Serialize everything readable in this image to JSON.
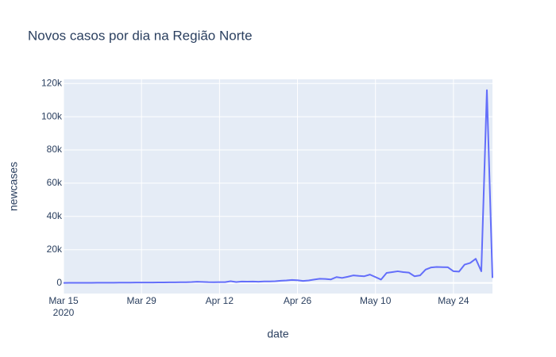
{
  "chart_data": {
    "type": "line",
    "title": "Novos casos por dia na Região Norte",
    "x_label": "date",
    "y_label": "newcases",
    "x": [
      "2020-03-15",
      "2020-03-16",
      "2020-03-17",
      "2020-03-18",
      "2020-03-19",
      "2020-03-20",
      "2020-03-21",
      "2020-03-22",
      "2020-03-23",
      "2020-03-24",
      "2020-03-25",
      "2020-03-26",
      "2020-03-27",
      "2020-03-28",
      "2020-03-29",
      "2020-03-30",
      "2020-03-31",
      "2020-04-01",
      "2020-04-02",
      "2020-04-03",
      "2020-04-04",
      "2020-04-05",
      "2020-04-06",
      "2020-04-07",
      "2020-04-08",
      "2020-04-09",
      "2020-04-10",
      "2020-04-11",
      "2020-04-12",
      "2020-04-13",
      "2020-04-14",
      "2020-04-15",
      "2020-04-16",
      "2020-04-17",
      "2020-04-18",
      "2020-04-19",
      "2020-04-20",
      "2020-04-21",
      "2020-04-22",
      "2020-04-23",
      "2020-04-24",
      "2020-04-25",
      "2020-04-26",
      "2020-04-27",
      "2020-04-28",
      "2020-04-29",
      "2020-04-30",
      "2020-05-01",
      "2020-05-02",
      "2020-05-03",
      "2020-05-04",
      "2020-05-05",
      "2020-05-06",
      "2020-05-07",
      "2020-05-08",
      "2020-05-09",
      "2020-05-10",
      "2020-05-11",
      "2020-05-12",
      "2020-05-13",
      "2020-05-14",
      "2020-05-15",
      "2020-05-16",
      "2020-05-17",
      "2020-05-18",
      "2020-05-19",
      "2020-05-20",
      "2020-05-21",
      "2020-05-22",
      "2020-05-23",
      "2020-05-24",
      "2020-05-25",
      "2020-05-26",
      "2020-05-27",
      "2020-05-28",
      "2020-05-29",
      "2020-05-30",
      "2020-05-31"
    ],
    "series": [
      {
        "name": "newcases",
        "color": "#636efa",
        "values": [
          10,
          20,
          30,
          40,
          50,
          60,
          80,
          100,
          110,
          120,
          150,
          160,
          180,
          200,
          220,
          230,
          250,
          270,
          300,
          320,
          350,
          380,
          400,
          500,
          700,
          600,
          450,
          400,
          450,
          450,
          1000,
          500,
          800,
          750,
          800,
          700,
          900,
          850,
          1000,
          1300,
          1500,
          1800,
          1600,
          1200,
          1500,
          2000,
          2500,
          2400,
          2100,
          3500,
          3000,
          3700,
          4500,
          4200,
          4000,
          5000,
          3500,
          2000,
          6000,
          6500,
          7000,
          6500,
          6200,
          4000,
          4500,
          8000,
          9300,
          9600,
          9500,
          9400,
          7000,
          6800,
          11000,
          12000,
          14500,
          7000,
          116000,
          3000
        ]
      }
    ],
    "xlim": [
      "2020-03-15",
      "2020-05-31"
    ],
    "xticks": [
      {
        "value": "2020-03-15",
        "label": "Mar 15\n2020"
      },
      {
        "value": "2020-03-29",
        "label": "Mar 29"
      },
      {
        "value": "2020-04-12",
        "label": "Apr 12"
      },
      {
        "value": "2020-04-26",
        "label": "Apr 26"
      },
      {
        "value": "2020-05-10",
        "label": "May 10"
      },
      {
        "value": "2020-05-24",
        "label": "May 24"
      }
    ],
    "ylim": [
      -6400,
      122500
    ],
    "yticks": [
      0,
      {
        "value": 20000,
        "label": "20k"
      },
      {
        "value": 40000,
        "label": "40k"
      },
      {
        "value": 60000,
        "label": "60k"
      },
      {
        "value": 80000,
        "label": "80k"
      },
      {
        "value": 100000,
        "label": "100k"
      },
      {
        "value": 120000,
        "label": "120k"
      }
    ],
    "grid": true
  }
}
